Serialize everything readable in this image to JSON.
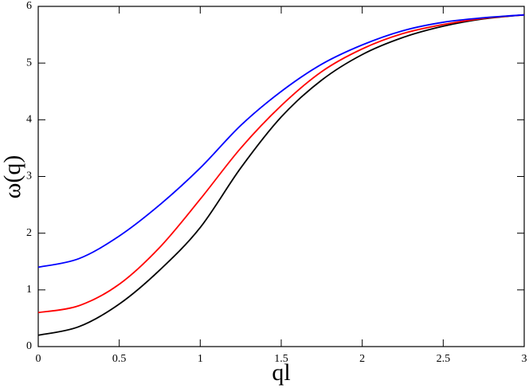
{
  "chart_data": {
    "type": "line",
    "x_label": "ql",
    "y_label": "ω(q)",
    "x": [
      0,
      0.25,
      0.5,
      0.75,
      1,
      1.25,
      1.5,
      1.75,
      2,
      2.25,
      2.5,
      2.75,
      3
    ],
    "series": [
      {
        "color": "#000000",
        "values": [
          0.2,
          0.35,
          0.75,
          1.35,
          2.1,
          3.15,
          4.05,
          4.7,
          5.15,
          5.45,
          5.65,
          5.78,
          5.85
        ]
      },
      {
        "color": "#ff0000",
        "values": [
          0.6,
          0.72,
          1.1,
          1.75,
          2.6,
          3.5,
          4.25,
          4.85,
          5.25,
          5.52,
          5.68,
          5.79,
          5.85
        ]
      },
      {
        "color": "#0000ff",
        "values": [
          1.4,
          1.55,
          1.95,
          2.5,
          3.15,
          3.9,
          4.5,
          4.98,
          5.32,
          5.57,
          5.72,
          5.8,
          5.85
        ]
      }
    ],
    "xlim": [
      0,
      3
    ],
    "xticks": [
      0,
      0.5,
      1,
      1.5,
      2,
      2.5,
      3
    ],
    "ylim": [
      0,
      6
    ],
    "yticks": [
      0,
      1,
      2,
      3,
      4,
      5,
      6
    ],
    "grid": false
  }
}
